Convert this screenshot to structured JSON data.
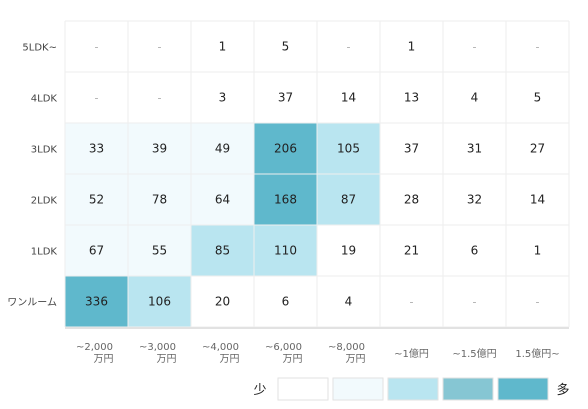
{
  "chart_data": {
    "type": "heatmap",
    "title": "",
    "xlabel": "",
    "ylabel": "",
    "rows": [
      "5LDK~",
      "4LDK",
      "3LDK",
      "2LDK",
      "1LDK",
      "ワンルーム"
    ],
    "columns": [
      [
        "~2,000",
        "万円"
      ],
      [
        "~3,000",
        "万円"
      ],
      [
        "~4,000",
        "万円"
      ],
      [
        "~6,000",
        "万円"
      ],
      [
        "~8,000",
        "万円"
      ],
      [
        "~1億円"
      ],
      [
        "~1.5億円"
      ],
      [
        "1.5億円~"
      ]
    ],
    "values": [
      [
        null,
        null,
        1,
        5,
        null,
        1,
        null,
        null
      ],
      [
        null,
        null,
        3,
        37,
        14,
        13,
        4,
        5
      ],
      [
        33,
        39,
        49,
        206,
        105,
        37,
        31,
        27
      ],
      [
        52,
        78,
        64,
        168,
        87,
        28,
        32,
        14
      ],
      [
        67,
        55,
        85,
        110,
        19,
        21,
        6,
        1
      ],
      [
        336,
        106,
        20,
        6,
        4,
        null,
        null,
        null
      ]
    ],
    "levels": [
      [
        0,
        0,
        0,
        0,
        0,
        0,
        0,
        0
      ],
      [
        0,
        0,
        0,
        0,
        0,
        0,
        0,
        0
      ],
      [
        1,
        1,
        1,
        4,
        2,
        0,
        0,
        0
      ],
      [
        1,
        1,
        1,
        4,
        2,
        0,
        0,
        0
      ],
      [
        1,
        1,
        2,
        2,
        0,
        0,
        0,
        0
      ],
      [
        4,
        2,
        0,
        0,
        0,
        0,
        0,
        0
      ]
    ],
    "missing_label": "-",
    "level_colors": [
      "#ffffff",
      "#f2fafd",
      "#b9e5f0",
      "#86c6d3",
      "#5fb8cc"
    ],
    "grid_color": "#eeeeee",
    "legend": {
      "position": "bottom-right",
      "low_label": "少",
      "high_label": "多"
    }
  }
}
